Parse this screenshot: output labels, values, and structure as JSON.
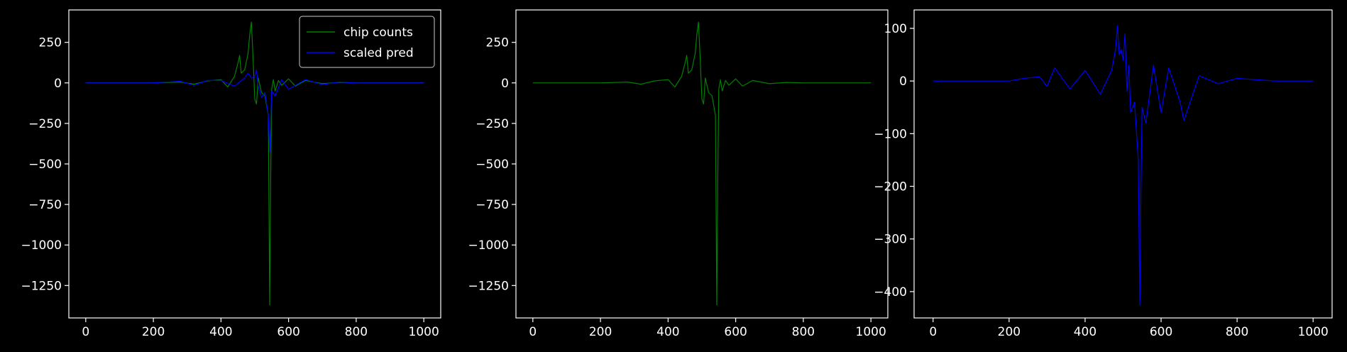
{
  "chart_data": [
    {
      "type": "line",
      "title": "",
      "xlabel": "",
      "ylabel": "",
      "xlim": [
        -50,
        1050
      ],
      "ylim": [
        -1450,
        450
      ],
      "xticks": [
        0,
        200,
        400,
        600,
        800,
        1000
      ],
      "yticks": [
        -1250,
        -1000,
        -750,
        -500,
        -250,
        0,
        250
      ],
      "xtick_labels": [
        "0",
        "200",
        "400",
        "600",
        "800",
        "1000"
      ],
      "ytick_labels": [
        "−1250",
        "−1000",
        "−750",
        "−500",
        "−250",
        "0",
        "250"
      ],
      "grid": false,
      "legend": "top-right",
      "series": [
        {
          "name": "chip counts",
          "color": "#008000",
          "x": [
            0,
            100,
            200,
            280,
            320,
            360,
            400,
            420,
            440,
            450,
            455,
            460,
            470,
            480,
            485,
            490,
            495,
            500,
            505,
            510,
            520,
            530,
            540,
            544,
            547,
            550,
            555,
            560,
            570,
            580,
            600,
            620,
            650,
            700,
            750,
            800,
            900,
            1000
          ],
          "values": [
            0,
            0,
            0,
            5,
            -8,
            12,
            20,
            -25,
            40,
            120,
            170,
            60,
            80,
            180,
            300,
            375,
            150,
            -100,
            -130,
            30,
            -60,
            -80,
            -200,
            -1370,
            -600,
            -40,
            20,
            -50,
            15,
            -15,
            25,
            -20,
            15,
            -5,
            3,
            0,
            0,
            0
          ]
        },
        {
          "name": "scaled pred",
          "color": "#0000ff",
          "x": [
            0,
            100,
            200,
            280,
            320,
            360,
            400,
            440,
            470,
            480,
            490,
            500,
            505,
            510,
            520,
            530,
            540,
            544,
            547,
            550,
            560,
            580,
            600,
            650,
            700,
            750,
            800,
            900,
            1000
          ],
          "values": [
            0,
            0,
            0,
            10,
            -15,
            15,
            15,
            -20,
            30,
            60,
            30,
            40,
            80,
            -20,
            -90,
            -60,
            -200,
            -430,
            -250,
            -50,
            -80,
            20,
            -40,
            20,
            -10,
            5,
            0,
            0,
            0
          ]
        }
      ]
    },
    {
      "type": "line",
      "title": "",
      "xlabel": "",
      "ylabel": "",
      "xlim": [
        -50,
        1050
      ],
      "ylim": [
        -1450,
        450
      ],
      "xticks": [
        0,
        200,
        400,
        600,
        800,
        1000
      ],
      "yticks": [
        -1250,
        -1000,
        -750,
        -500,
        -250,
        0,
        250
      ],
      "xtick_labels": [
        "0",
        "200",
        "400",
        "600",
        "800",
        "1000"
      ],
      "ytick_labels": [
        "−1250",
        "−1000",
        "−750",
        "−500",
        "−250",
        "0",
        "250"
      ],
      "grid": false,
      "series": [
        {
          "color": "#008000",
          "x": [
            0,
            100,
            200,
            280,
            320,
            360,
            400,
            420,
            440,
            450,
            455,
            460,
            470,
            480,
            485,
            490,
            495,
            500,
            505,
            510,
            520,
            530,
            540,
            544,
            547,
            550,
            555,
            560,
            570,
            580,
            600,
            620,
            650,
            700,
            750,
            800,
            900,
            1000
          ],
          "values": [
            0,
            0,
            0,
            5,
            -8,
            12,
            20,
            -25,
            40,
            120,
            170,
            60,
            80,
            180,
            300,
            375,
            150,
            -100,
            -130,
            30,
            -60,
            -80,
            -200,
            -1370,
            -600,
            -40,
            20,
            -50,
            15,
            -15,
            25,
            -20,
            15,
            -5,
            3,
            0,
            0,
            0
          ]
        }
      ]
    },
    {
      "type": "line",
      "title": "",
      "xlabel": "",
      "ylabel": "",
      "xlim": [
        -50,
        1050
      ],
      "ylim": [
        -450,
        135
      ],
      "xticks": [
        0,
        200,
        400,
        600,
        800,
        1000
      ],
      "yticks": [
        -400,
        -300,
        -200,
        -100,
        0,
        100
      ],
      "xtick_labels": [
        "0",
        "200",
        "400",
        "600",
        "800",
        "1000"
      ],
      "ytick_labels": [
        "−400",
        "−300",
        "−200",
        "−100",
        "0",
        "100"
      ],
      "grid": false,
      "series": [
        {
          "color": "#0000ff",
          "x": [
            0,
            100,
            200,
            240,
            280,
            300,
            320,
            360,
            400,
            440,
            470,
            480,
            485,
            490,
            495,
            500,
            505,
            510,
            515,
            520,
            530,
            540,
            544,
            547,
            550,
            560,
            580,
            600,
            620,
            650,
            660,
            700,
            750,
            800,
            900,
            1000
          ],
          "values": [
            0,
            0,
            0,
            5,
            8,
            -10,
            25,
            -15,
            20,
            -25,
            20,
            60,
            105,
            50,
            60,
            40,
            90,
            -20,
            30,
            -60,
            -40,
            -150,
            -425,
            -200,
            -50,
            -80,
            30,
            -60,
            25,
            -40,
            -75,
            10,
            -5,
            5,
            0,
            0
          ]
        }
      ]
    }
  ]
}
